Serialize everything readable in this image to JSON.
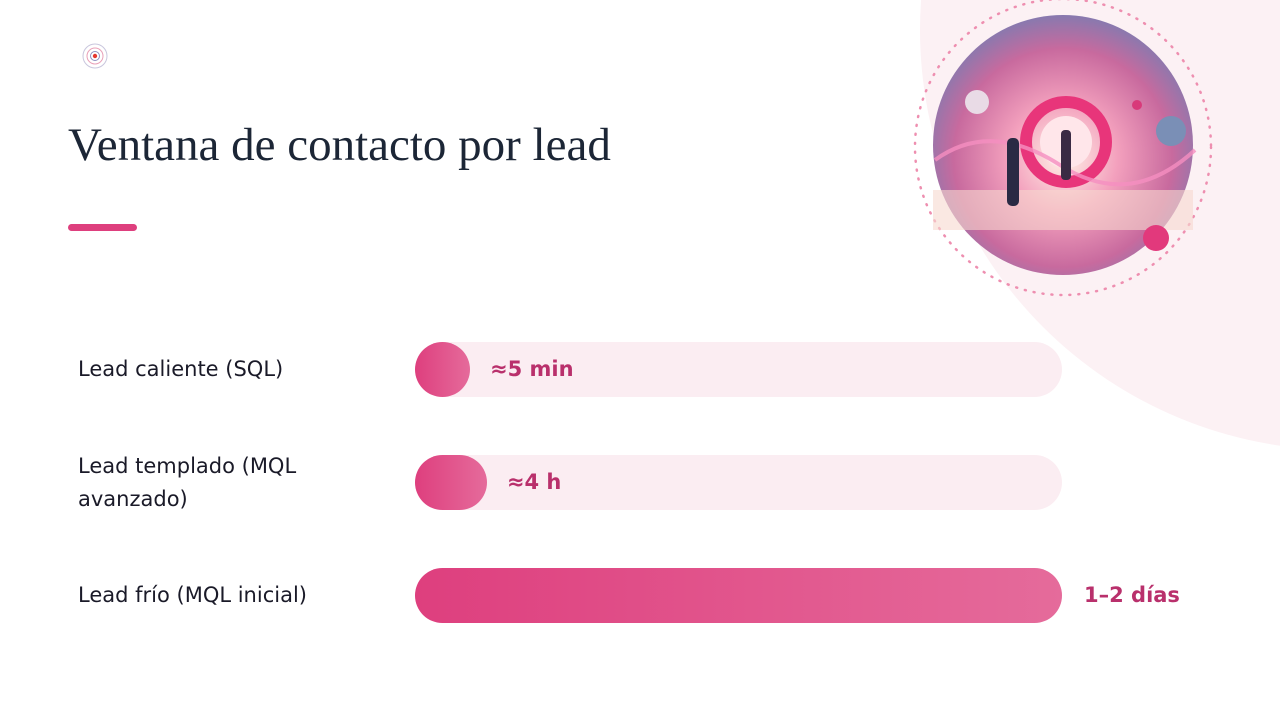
{
  "chart_data": {
    "type": "bar",
    "orientation": "horizontal",
    "title": "Ventana de contacto por lead",
    "categories": [
      "Lead caliente (SQL)",
      "Lead templado (MQL avanzado)",
      "Lead frío (MQL inicial)"
    ],
    "values": [
      5,
      240,
      2160
    ],
    "value_labels": [
      "≈5 min",
      "≈4 h",
      "1–2 días"
    ],
    "color": "#de3f7e"
  }
}
